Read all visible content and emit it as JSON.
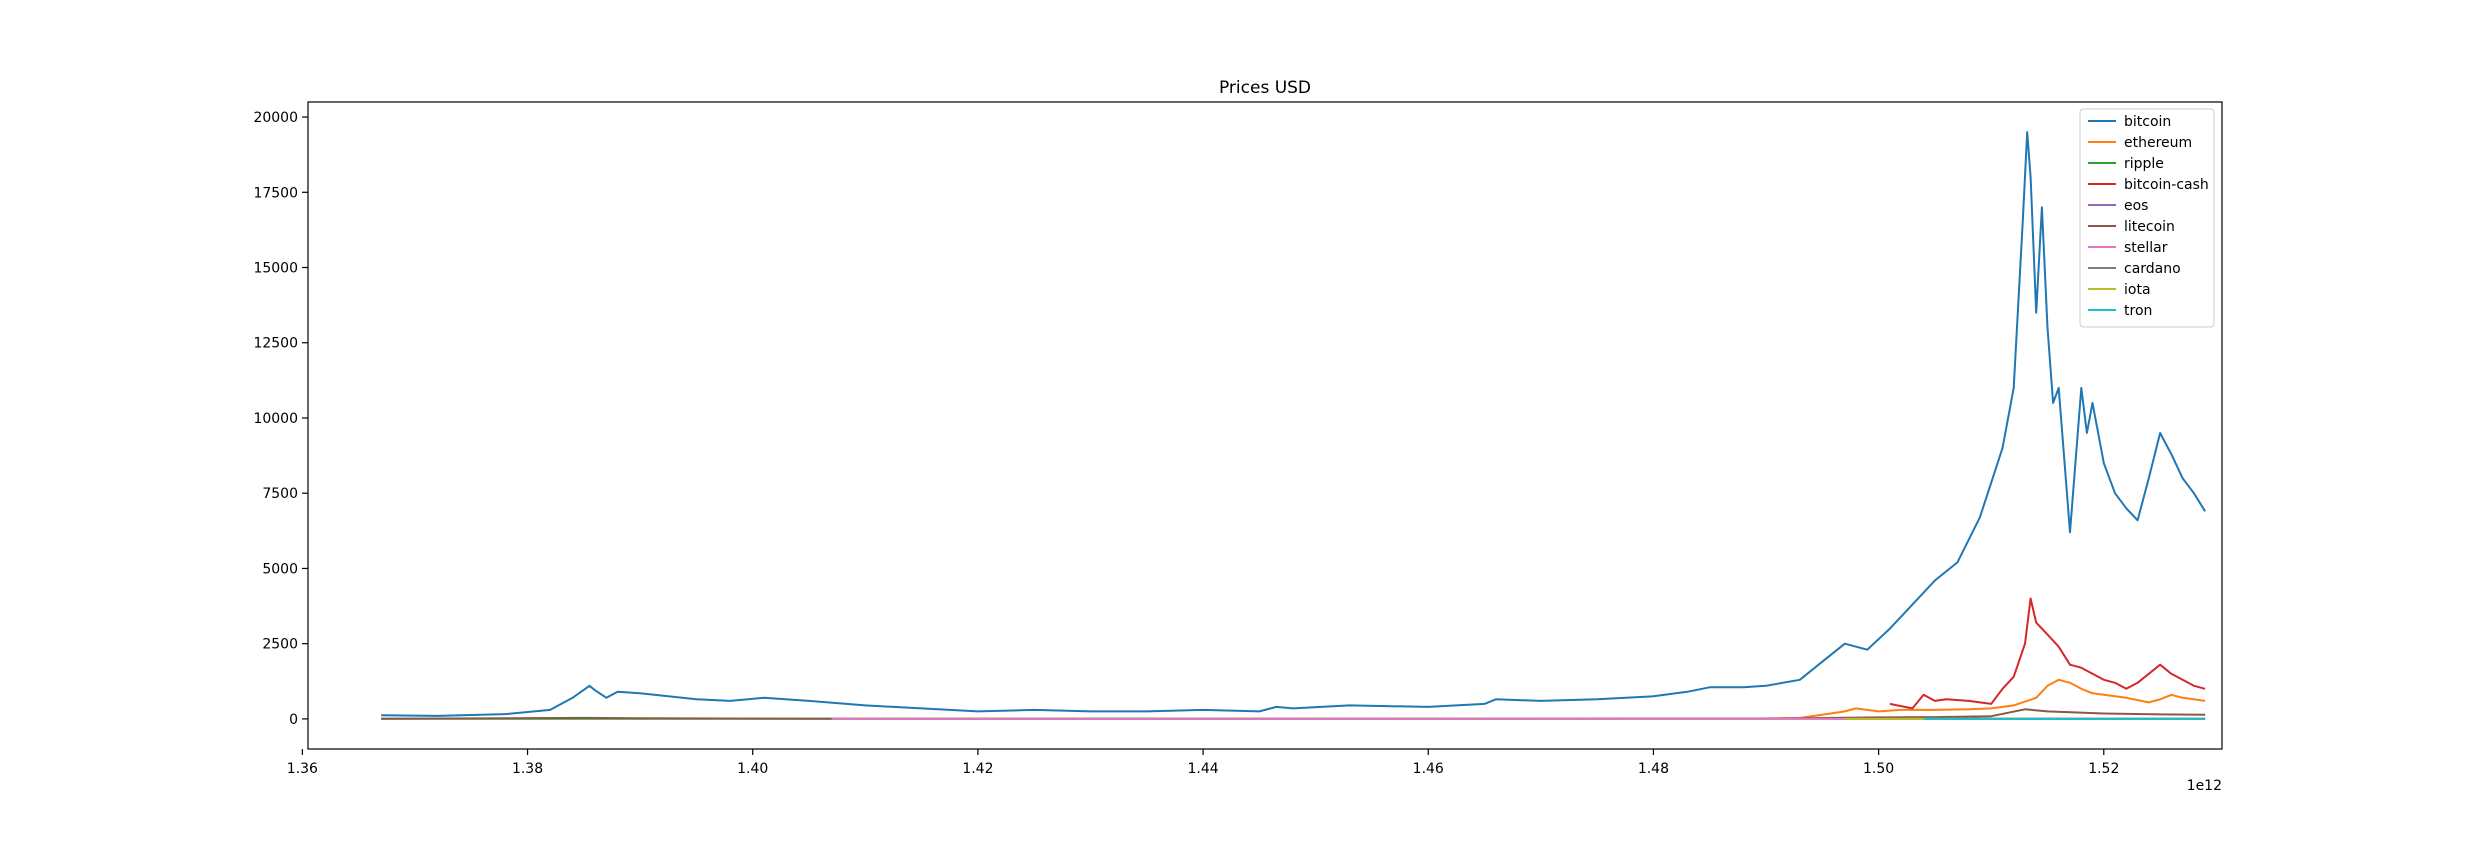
{
  "chart_data": {
    "type": "line",
    "title": "Prices USD",
    "xlabel": "",
    "ylabel": "",
    "x_offset_label": "1e12",
    "xlim": [
      1.3605,
      1.5305
    ],
    "ylim": [
      -1000,
      20500
    ],
    "x_ticks": [
      1.36,
      1.38,
      1.4,
      1.42,
      1.44,
      1.46,
      1.48,
      1.5,
      1.52
    ],
    "x_tick_labels": [
      "1.36",
      "1.38",
      "1.40",
      "1.42",
      "1.44",
      "1.46",
      "1.48",
      "1.50",
      "1.52"
    ],
    "y_ticks": [
      0,
      2500,
      5000,
      7500,
      10000,
      12500,
      15000,
      17500,
      20000
    ],
    "y_tick_labels": [
      "0",
      "2500",
      "5000",
      "7500",
      "10000",
      "12500",
      "15000",
      "17500",
      "20000"
    ],
    "grid": false,
    "legend_position": "top-right",
    "series": [
      {
        "name": "bitcoin",
        "color": "#1f77b4",
        "x": [
          1.367,
          1.372,
          1.378,
          1.382,
          1.384,
          1.3855,
          1.386,
          1.387,
          1.388,
          1.39,
          1.395,
          1.398,
          1.401,
          1.405,
          1.41,
          1.415,
          1.42,
          1.425,
          1.43,
          1.435,
          1.44,
          1.445,
          1.4465,
          1.448,
          1.453,
          1.46,
          1.465,
          1.466,
          1.47,
          1.475,
          1.48,
          1.483,
          1.485,
          1.488,
          1.49,
          1.493,
          1.495,
          1.497,
          1.499,
          1.501,
          1.503,
          1.505,
          1.507,
          1.509,
          1.511,
          1.512,
          1.5128,
          1.5132,
          1.5135,
          1.514,
          1.5145,
          1.515,
          1.5155,
          1.516,
          1.517,
          1.518,
          1.5185,
          1.519,
          1.52,
          1.521,
          1.522,
          1.523,
          1.524,
          1.525,
          1.526,
          1.527,
          1.528,
          1.529
        ],
        "y": [
          120,
          100,
          160,
          300,
          700,
          1100,
          950,
          700,
          900,
          850,
          650,
          600,
          700,
          600,
          450,
          350,
          250,
          300,
          250,
          250,
          300,
          250,
          400,
          350,
          450,
          400,
          500,
          650,
          600,
          650,
          750,
          900,
          1050,
          1050,
          1100,
          1300,
          1900,
          2500,
          2300,
          3000,
          3800,
          4600,
          5200,
          6700,
          9000,
          11000,
          16500,
          19500,
          18000,
          13500,
          17000,
          13000,
          10500,
          11000,
          6200,
          11000,
          9500,
          10500,
          8500,
          7500,
          7000,
          6600,
          8000,
          9500,
          8800,
          8000,
          7500,
          6900
        ]
      },
      {
        "name": "ethereum",
        "color": "#ff7f0e",
        "x": [
          1.489,
          1.493,
          1.497,
          1.498,
          1.499,
          1.5,
          1.502,
          1.505,
          1.508,
          1.51,
          1.512,
          1.514,
          1.515,
          1.516,
          1.517,
          1.518,
          1.519,
          1.52,
          1.522,
          1.524,
          1.525,
          1.526,
          1.527,
          1.528,
          1.529
        ],
        "y": [
          10,
          30,
          250,
          350,
          300,
          250,
          300,
          300,
          320,
          350,
          450,
          700,
          1100,
          1300,
          1200,
          1000,
          850,
          800,
          700,
          550,
          650,
          800,
          700,
          650,
          600
        ]
      },
      {
        "name": "ripple",
        "color": "#2ca02c",
        "x": [
          1.367,
          1.45,
          1.51,
          1.513,
          1.515,
          1.52,
          1.529
        ],
        "y": [
          5,
          3,
          5,
          2,
          3,
          1,
          1
        ]
      },
      {
        "name": "bitcoin-cash",
        "color": "#d62728",
        "x": [
          1.501,
          1.503,
          1.504,
          1.505,
          1.506,
          1.508,
          1.51,
          1.511,
          1.512,
          1.513,
          1.5135,
          1.514,
          1.515,
          1.516,
          1.517,
          1.518,
          1.519,
          1.52,
          1.521,
          1.522,
          1.523,
          1.524,
          1.525,
          1.526,
          1.527,
          1.528,
          1.529
        ],
        "y": [
          500,
          350,
          800,
          600,
          650,
          600,
          500,
          1000,
          1400,
          2500,
          4000,
          3200,
          2800,
          2400,
          1800,
          1700,
          1500,
          1300,
          1200,
          1000,
          1200,
          1500,
          1800,
          1500,
          1300,
          1100,
          1000
        ]
      },
      {
        "name": "eos",
        "color": "#9467bd",
        "x": [
          1.498,
          1.51,
          1.515,
          1.52,
          1.529
        ],
        "y": [
          1,
          5,
          15,
          10,
          12
        ]
      },
      {
        "name": "litecoin",
        "color": "#8c564b",
        "x": [
          1.367,
          1.385,
          1.39,
          1.41,
          1.45,
          1.49,
          1.5,
          1.505,
          1.51,
          1.513,
          1.515,
          1.52,
          1.525,
          1.529
        ],
        "y": [
          4,
          35,
          20,
          5,
          4,
          10,
          50,
          60,
          90,
          320,
          250,
          180,
          150,
          140
        ]
      },
      {
        "name": "stellar",
        "color": "#e377c2",
        "x": [
          1.407,
          1.45,
          1.5,
          1.515,
          1.529
        ],
        "y": [
          1,
          1,
          1,
          1,
          1
        ]
      },
      {
        "name": "cardano",
        "color": "#7f7f7f",
        "x": [
          1.507,
          1.515,
          1.529
        ],
        "y": [
          1,
          1,
          1
        ]
      },
      {
        "name": "iota",
        "color": "#bcbd22",
        "x": [
          1.497,
          1.515,
          1.529
        ],
        "y": [
          1,
          4,
          2
        ]
      },
      {
        "name": "tron",
        "color": "#17becf",
        "x": [
          1.504,
          1.515,
          1.529
        ],
        "y": [
          1,
          1,
          1
        ]
      }
    ]
  }
}
